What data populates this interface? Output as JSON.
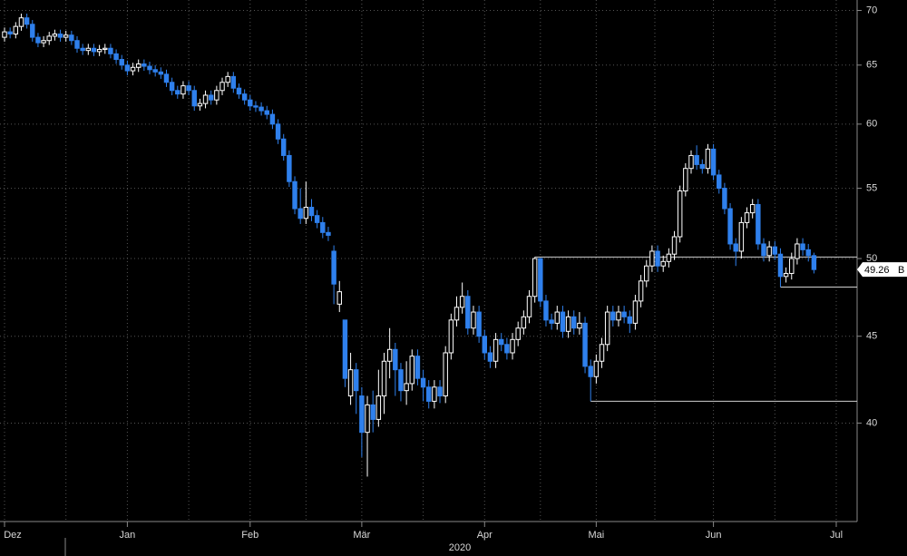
{
  "chart_data": {
    "type": "candlestick",
    "categories": [
      "Dez",
      null,
      null,
      null,
      null,
      null,
      null,
      null,
      null,
      null,
      null,
      null,
      null,
      null,
      null,
      null,
      null,
      null,
      null,
      null,
      null,
      null,
      "Jan",
      null,
      null,
      null,
      null,
      null,
      null,
      null,
      null,
      null,
      null,
      null,
      null,
      null,
      null,
      null,
      null,
      null,
      null,
      null,
      null,
      null,
      "Feb",
      null,
      null,
      null,
      null,
      null,
      null,
      null,
      null,
      null,
      null,
      null,
      null,
      null,
      null,
      null,
      null,
      null,
      null,
      null,
      "Mär",
      null,
      null,
      null,
      null,
      null,
      null,
      null,
      null,
      null,
      null,
      null,
      null,
      null,
      null,
      null,
      null,
      null,
      null,
      null,
      null,
      null,
      "Apr",
      null,
      null,
      null,
      null,
      null,
      null,
      null,
      null,
      null,
      null,
      null,
      null,
      null,
      null,
      null,
      null,
      null,
      null,
      null,
      "Mai",
      null,
      null,
      null,
      null,
      null,
      null,
      null,
      null,
      null,
      null,
      null,
      null,
      null,
      null,
      null,
      null,
      null,
      null,
      null,
      null,
      "Jun",
      null,
      null,
      null,
      null,
      null,
      null,
      null,
      null,
      null,
      null,
      null,
      null,
      null,
      null,
      null,
      null,
      null,
      null,
      null,
      null,
      null,
      "Jul"
    ],
    "open": [
      67.5,
      68.0,
      67.8,
      68.5,
      69.3,
      68.7,
      67.5,
      67.0,
      67.2,
      67.6,
      67.8,
      67.5,
      67.7,
      67.2,
      66.5,
      66.3,
      66.5,
      66.2,
      66.4,
      66.5,
      66.0,
      65.5,
      65.0,
      64.5,
      64.8,
      65.1,
      64.9,
      64.6,
      64.4,
      64.2,
      63.5,
      62.8,
      62.5,
      63.2,
      62.8,
      61.5,
      61.7,
      62.4,
      62.0,
      62.8,
      63.5,
      64.0,
      63.0,
      62.5,
      62.0,
      61.5,
      61.4,
      61.1,
      60.8,
      60.0,
      58.8,
      57.5,
      55.5,
      53.5,
      52.8,
      53.6,
      53.0,
      52.5,
      51.8,
      50.5,
      47.0,
      46.0,
      41.5,
      43.0,
      41.5,
      39.5,
      41.0,
      40.2,
      41.5,
      43.5,
      44.2,
      43.0,
      41.8,
      42.2,
      43.8,
      42.5,
      42.0,
      41.2,
      42.0,
      41.5,
      44.0,
      46.0,
      46.8,
      47.5,
      45.5,
      46.5,
      45.0,
      44.0,
      43.5,
      44.8,
      44.5,
      44.0,
      44.8,
      45.5,
      46.2,
      47.5,
      50.0,
      47.2,
      46.0,
      45.8,
      46.5,
      45.3,
      46.2,
      45.5,
      45.8,
      43.2,
      42.6,
      43.5,
      44.5,
      46.5,
      46.0,
      46.5,
      46.2,
      45.8,
      47.2,
      48.5,
      49.5,
      50.5,
      49.5,
      49.8,
      50.3,
      51.5,
      54.8,
      56.5,
      57.5,
      56.8,
      56.5,
      58.0,
      56.0,
      55.0,
      53.5,
      51.0,
      50.5,
      52.5,
      53.2,
      53.8,
      51.0,
      50.2,
      50.8,
      50.3,
      48.8,
      49.0,
      50.0,
      51.0,
      50.6,
      50.2,
      null,
      null,
      null,
      null
    ],
    "high": [
      68.4,
      68.4,
      68.9,
      69.7,
      69.7,
      69.1,
      67.9,
      67.6,
      68.0,
      68.2,
      68.2,
      68.1,
      68.1,
      67.6,
      66.9,
      66.9,
      66.9,
      66.8,
      66.9,
      66.9,
      66.4,
      65.9,
      65.4,
      65.2,
      65.5,
      65.5,
      65.3,
      65.0,
      64.8,
      64.6,
      63.9,
      63.2,
      63.6,
      63.6,
      63.2,
      62.1,
      62.8,
      62.8,
      63.2,
      63.9,
      64.4,
      64.4,
      63.4,
      62.9,
      62.4,
      61.9,
      61.8,
      61.5,
      61.2,
      60.4,
      59.2,
      57.9,
      55.9,
      55.0,
      55.5,
      54.2,
      53.4,
      52.9,
      52.2,
      50.9,
      48.5,
      46.0,
      44.0,
      43.4,
      42.0,
      41.5,
      41.8,
      43.0,
      44.0,
      45.5,
      44.6,
      43.4,
      43.5,
      44.2,
      44.2,
      43.0,
      42.4,
      42.4,
      42.4,
      44.4,
      46.4,
      47.5,
      48.4,
      47.9,
      46.9,
      46.9,
      45.4,
      44.4,
      45.2,
      45.2,
      44.9,
      45.2,
      45.9,
      46.6,
      47.9,
      50.1,
      50.0,
      47.6,
      46.4,
      46.9,
      46.9,
      46.6,
      46.6,
      46.5,
      46.2,
      43.6,
      43.9,
      44.9,
      46.9,
      46.9,
      46.9,
      46.9,
      46.6,
      47.6,
      48.9,
      49.9,
      50.9,
      50.9,
      50.2,
      50.7,
      51.9,
      55.2,
      56.9,
      57.9,
      58.3,
      57.2,
      58.4,
      58.4,
      56.4,
      55.4,
      53.9,
      51.4,
      52.9,
      53.6,
      54.2,
      54.2,
      51.4,
      51.2,
      51.2,
      50.7,
      49.4,
      50.4,
      51.4,
      51.4,
      51.0,
      50.4,
      null,
      null,
      null,
      null
    ],
    "low": [
      67.1,
      67.4,
      67.4,
      68.1,
      68.3,
      67.1,
      66.6,
      66.6,
      66.8,
      67.2,
      67.1,
      67.1,
      66.8,
      66.1,
      65.9,
      65.9,
      65.8,
      65.8,
      66.0,
      65.6,
      65.1,
      64.6,
      64.1,
      64.1,
      64.4,
      64.5,
      64.2,
      64.0,
      63.8,
      63.1,
      62.4,
      62.1,
      62.1,
      62.4,
      61.1,
      61.1,
      61.3,
      61.6,
      61.6,
      62.4,
      63.1,
      62.6,
      62.1,
      61.6,
      61.1,
      61.0,
      60.7,
      60.4,
      59.6,
      58.4,
      57.1,
      55.1,
      53.1,
      52.4,
      52.4,
      52.6,
      52.1,
      51.4,
      51.2,
      47.0,
      46.5,
      42.0,
      41.0,
      40.5,
      38.2,
      37.2,
      39.5,
      39.8,
      40.5,
      42.5,
      41.5,
      41.2,
      41.0,
      41.8,
      42.1,
      41.2,
      40.8,
      40.8,
      41.1,
      41.1,
      43.6,
      45.6,
      46.4,
      45.1,
      45.1,
      44.6,
      43.6,
      43.1,
      43.1,
      44.1,
      43.6,
      43.6,
      44.4,
      45.1,
      45.8,
      47.1,
      46.8,
      45.6,
      45.4,
      45.4,
      44.9,
      44.9,
      45.1,
      45.1,
      42.8,
      41.2,
      42.2,
      43.1,
      44.1,
      45.6,
      45.6,
      45.8,
      45.2,
      45.4,
      46.8,
      48.1,
      49.1,
      49.1,
      49.1,
      49.4,
      49.9,
      51.1,
      54.4,
      56.1,
      56.4,
      56.1,
      56.1,
      55.6,
      54.6,
      53.1,
      50.6,
      49.5,
      50.0,
      52.1,
      52.8,
      50.6,
      49.8,
      49.8,
      49.9,
      48.1,
      48.4,
      48.6,
      49.6,
      50.2,
      49.8,
      49.0,
      null,
      null,
      null,
      null
    ],
    "close": [
      68.0,
      67.8,
      68.5,
      69.3,
      68.7,
      67.5,
      67.0,
      67.2,
      67.6,
      67.8,
      67.5,
      67.7,
      67.2,
      66.5,
      66.3,
      66.5,
      66.2,
      66.4,
      66.5,
      66.0,
      65.5,
      65.0,
      64.5,
      64.8,
      65.1,
      64.9,
      64.6,
      64.4,
      64.2,
      63.5,
      62.8,
      62.5,
      63.2,
      62.8,
      61.5,
      61.7,
      62.4,
      62.0,
      62.8,
      63.5,
      64.0,
      63.0,
      62.5,
      62.0,
      61.5,
      61.4,
      61.1,
      60.8,
      60.0,
      58.8,
      57.5,
      55.5,
      53.5,
      52.8,
      53.6,
      53.0,
      52.5,
      51.8,
      51.6,
      48.3,
      47.8,
      42.5,
      43.0,
      41.8,
      39.5,
      41.0,
      40.2,
      41.5,
      43.5,
      44.2,
      43.0,
      41.8,
      42.2,
      43.8,
      42.5,
      42.0,
      41.2,
      42.0,
      41.5,
      44.0,
      46.0,
      46.8,
      47.5,
      45.5,
      46.5,
      45.0,
      44.0,
      43.5,
      44.8,
      44.5,
      44.0,
      44.8,
      45.5,
      46.2,
      47.5,
      50.0,
      47.2,
      46.0,
      45.8,
      46.5,
      45.3,
      46.2,
      45.5,
      45.8,
      43.2,
      42.6,
      43.5,
      44.5,
      46.5,
      46.0,
      46.5,
      46.2,
      45.8,
      47.2,
      48.5,
      49.5,
      50.5,
      49.5,
      49.8,
      50.3,
      51.5,
      54.8,
      56.5,
      57.5,
      56.8,
      56.5,
      58.0,
      56.0,
      55.0,
      53.5,
      51.0,
      50.5,
      52.5,
      53.2,
      53.8,
      51.0,
      50.2,
      50.8,
      50.3,
      48.8,
      49.0,
      50.0,
      51.0,
      50.6,
      50.2,
      49.26,
      null,
      null,
      null,
      null
    ],
    "up_color": "#ffffff",
    "down_color": "#2f80ed",
    "levels": [
      50.1,
      48.1,
      41.2
    ],
    "year_label": "2020",
    "price_tag_suffix": "B",
    "ylim": [
      35,
      71
    ],
    "yticks": [
      40,
      45,
      50,
      55,
      60,
      65,
      70
    ],
    "log_scale": true,
    "grid": true
  }
}
